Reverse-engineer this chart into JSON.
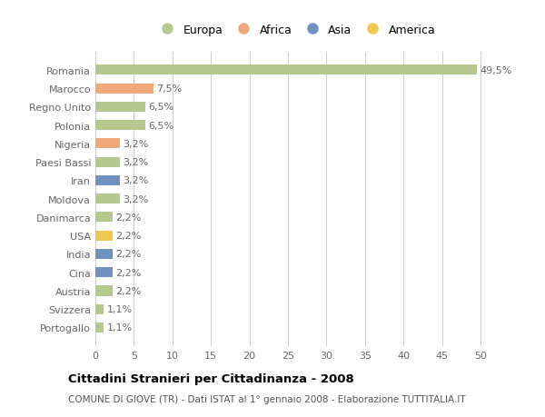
{
  "categories": [
    "Romania",
    "Marocco",
    "Regno Unito",
    "Polonia",
    "Nigeria",
    "Paesi Bassi",
    "Iran",
    "Moldova",
    "Danimarca",
    "USA",
    "India",
    "Cina",
    "Austria",
    "Svizzera",
    "Portogallo"
  ],
  "values": [
    49.5,
    7.5,
    6.5,
    6.5,
    3.2,
    3.2,
    3.2,
    3.2,
    2.2,
    2.2,
    2.2,
    2.2,
    2.2,
    1.1,
    1.1
  ],
  "labels": [
    "49,5%",
    "7,5%",
    "6,5%",
    "6,5%",
    "3,2%",
    "3,2%",
    "3,2%",
    "3,2%",
    "2,2%",
    "2,2%",
    "2,2%",
    "2,2%",
    "2,2%",
    "1,1%",
    "1,1%"
  ],
  "continents": [
    "Europa",
    "Africa",
    "Europa",
    "Europa",
    "Africa",
    "Europa",
    "Asia",
    "Europa",
    "Europa",
    "America",
    "Asia",
    "Asia",
    "Europa",
    "Europa",
    "Europa"
  ],
  "continent_colors": {
    "Europa": "#b5c98e",
    "Africa": "#f0a878",
    "Asia": "#7090c0",
    "America": "#f0c850"
  },
  "legend_order": [
    "Europa",
    "Africa",
    "Asia",
    "America"
  ],
  "xlim": [
    0,
    52
  ],
  "xticks": [
    0,
    5,
    10,
    15,
    20,
    25,
    30,
    35,
    40,
    45,
    50
  ],
  "title": "Cittadini Stranieri per Cittadinanza - 2008",
  "subtitle": "COMUNE DI GIOVE (TR) - Dati ISTAT al 1° gennaio 2008 - Elaborazione TUTTITALIA.IT",
  "bg_color": "#ffffff",
  "grid_color": "#cccccc",
  "bar_height": 0.55,
  "label_fontsize": 8.0,
  "tick_fontsize": 8.0,
  "title_fontsize": 9.5,
  "subtitle_fontsize": 7.5
}
